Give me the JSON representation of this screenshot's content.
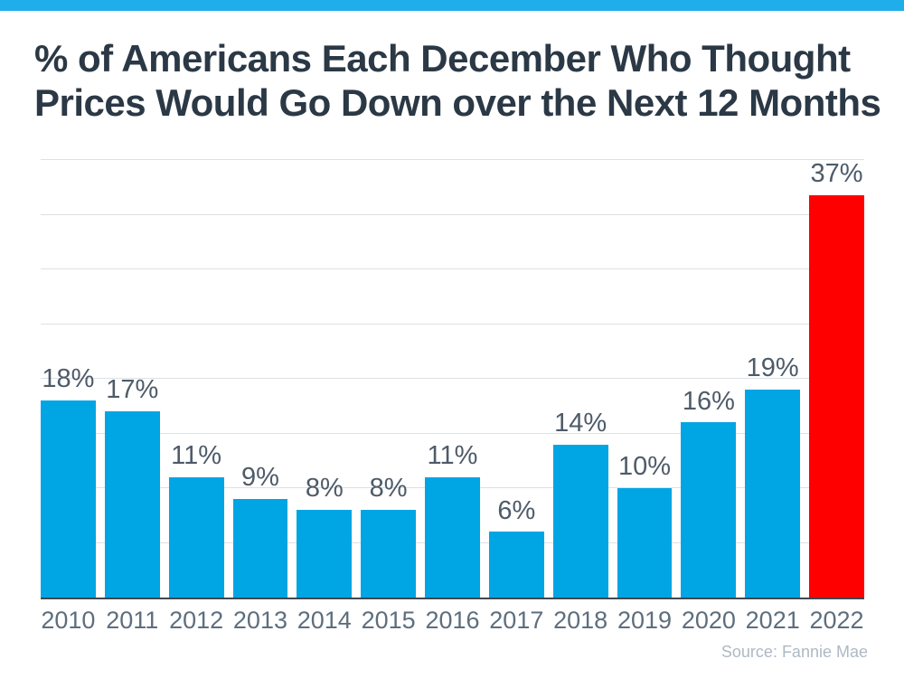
{
  "page": {
    "accent_strip_color": "#1FADEC",
    "background_color": "#FFFFFF"
  },
  "header": {
    "title_line1": "% of Americans Each December Who Thought",
    "title_line2": "Prices Would Go Down over the Next 12 Months",
    "title_color": "#2B3845"
  },
  "chart_data": {
    "type": "bar",
    "title": "% of Americans Each December Who Thought Prices Would Go Down over the Next 12 Months",
    "categories": [
      "2010",
      "2011",
      "2012",
      "2013",
      "2014",
      "2015",
      "2016",
      "2017",
      "2018",
      "2019",
      "2020",
      "2021",
      "2022"
    ],
    "values": [
      18,
      17,
      11,
      9,
      8,
      8,
      11,
      6,
      14,
      10,
      16,
      19,
      37
    ],
    "value_labels": [
      "18%",
      "17%",
      "11%",
      "9%",
      "8%",
      "8%",
      "11%",
      "6%",
      "14%",
      "10%",
      "16%",
      "19%",
      "37%"
    ],
    "xlabel": "",
    "ylabel": "",
    "ylim": [
      0,
      40
    ],
    "gridline_step": 5,
    "grid": true,
    "legend": "none",
    "bar_color": "#00A5E4",
    "highlight_index": 12,
    "highlight_color": "#FF0000",
    "value_label_color": "#4E5B69",
    "axis_label_color": "#5E6E7E",
    "gridline_color": "#DDE1E4",
    "axis_line_color": "#3F4850"
  },
  "footer": {
    "source": "Source: Fannie Mae",
    "source_color": "#AEB9C4"
  }
}
